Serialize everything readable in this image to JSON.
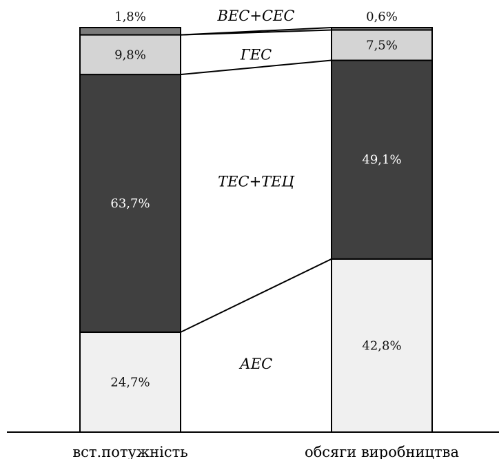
{
  "chart_data": {
    "type": "bar",
    "stacked": true,
    "normalized": true,
    "ylim": [
      0,
      100
    ],
    "categories": [
      "вст.потужність",
      "обсяги виробництва"
    ],
    "series": [
      {
        "name": "АЕС",
        "values": [
          24.7,
          42.8
        ],
        "labels": [
          "24,7%",
          "42,8%"
        ],
        "color": "#f0f0f0",
        "label_color": "#111111"
      },
      {
        "name": "ТЕС+ТЕЦ",
        "values": [
          63.7,
          49.1
        ],
        "labels": [
          "63,7%",
          "49,1%"
        ],
        "color": "#404040",
        "label_color": "#ffffff"
      },
      {
        "name": "ГЕС",
        "values": [
          9.8,
          7.5
        ],
        "labels": [
          "9,8%",
          "7,5%"
        ],
        "color": "#d4d4d4",
        "label_color": "#111111"
      },
      {
        "name": "ВЕС+СЕС",
        "values": [
          1.8,
          0.6
        ],
        "labels": [
          "1,8%",
          "0,6%"
        ],
        "color": "#7a7a7a",
        "label_color": "#111111"
      }
    ],
    "grid": false,
    "legend": "between bars"
  }
}
